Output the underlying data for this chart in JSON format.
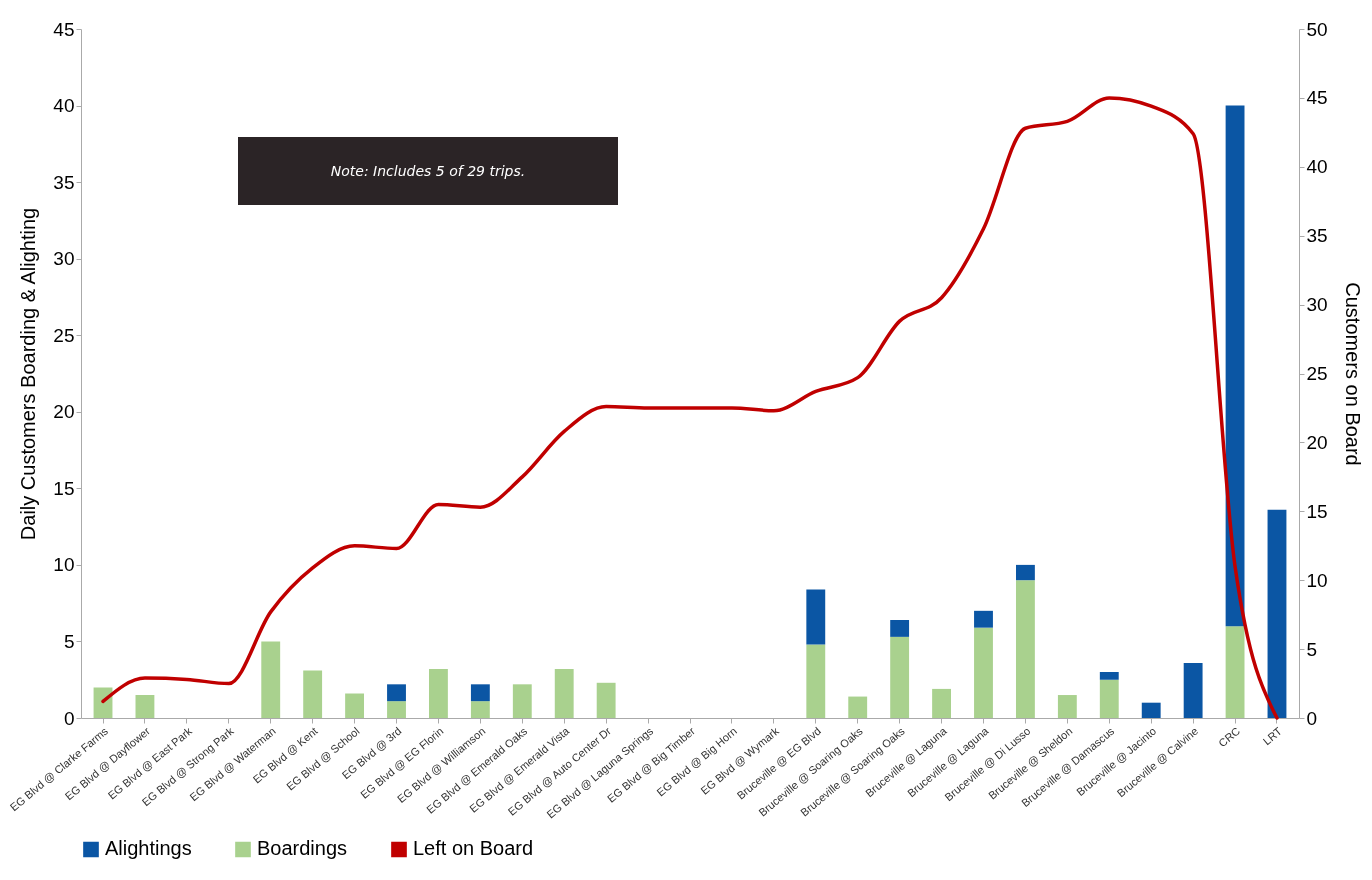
{
  "chart_data": {
    "type": "bar",
    "stacked": true,
    "categories": [
      "EG Blvd @ Clarke Farms",
      "EG Blvd @ Dayflower",
      "EG Blvd @ East Park",
      "EG Blvd @ Strong Park",
      "EG Blvd @ Waterman",
      "EG Blvd @ Kent",
      "EG Blvd @ School",
      "EG Blvd @ 3rd",
      "EG Blvd @ EG Florin",
      "EG Blvd @ Williamson",
      "EG Blvd @ Emerald Oaks",
      "EG Blvd @ Emerald Vista",
      "EG Blvd @ Auto Center Dr",
      "EG Blvd @ Laguna Springs",
      "EG Blvd @ Big Timber",
      "EG Blvd @ Big Horn",
      "EG Blvd @ Wymark",
      "Bruceville @ EG Blvd",
      "Bruceville @ Soaring Oaks",
      "Bruceville @ Soaring Oaks",
      "Bruceville @ Laguna",
      "Bruceville @ Laguna",
      "Bruceville @ Di Lusso",
      "Bruceville @ Sheldon",
      "Bruceville @ Damascus",
      "Bruceville @ Jacinto",
      "Bruceville @ Calvine",
      "CRC",
      "LRT"
    ],
    "series": [
      {
        "name": "Boardings",
        "color": "#a9d18e",
        "values": [
          2,
          1.5,
          0,
          0,
          5,
          3.1,
          1.6,
          1.1,
          3.2,
          1.1,
          2.2,
          3.2,
          2.3,
          0,
          0,
          0,
          0,
          4.8,
          1.4,
          5.3,
          1.9,
          5.9,
          9,
          1.5,
          2.5,
          0,
          0,
          6,
          0
        ]
      },
      {
        "name": "Alightings",
        "color": "#0b56a4",
        "values": [
          0,
          0,
          0,
          0,
          0,
          0,
          0,
          1.1,
          0,
          1.1,
          0,
          0,
          0,
          0,
          0,
          0,
          0,
          3.6,
          0,
          1.1,
          0,
          1.1,
          1,
          0,
          0.5,
          1,
          3.6,
          34,
          13.6
        ]
      },
      {
        "name": "Left on Board",
        "color": "#c00000",
        "type": "line",
        "axis": "y2",
        "values": [
          1.2,
          2.9,
          2.8,
          2.5,
          7.7,
          10.9,
          12.5,
          12.3,
          15.5,
          15.3,
          17.5,
          20.8,
          22.6,
          22.5,
          22.5,
          22.5,
          22.3,
          23.7,
          24.7,
          28.8,
          30.5,
          35.5,
          42.8,
          43.3,
          45,
          44.4,
          42.4,
          11,
          0
        ]
      }
    ],
    "ylabel": "Daily Customers Boarding & Alighting",
    "y2label": "Customers on Board",
    "ylim": [
      0,
      45
    ],
    "yticks": [
      0,
      5,
      10,
      15,
      20,
      25,
      30,
      35,
      40,
      45
    ],
    "y2lim": [
      0,
      50
    ],
    "y2ticks": [
      0,
      5,
      10,
      15,
      20,
      25,
      30,
      35,
      40,
      45,
      50
    ],
    "legend": "bottom",
    "annotations": [
      "Note: Includes 5 of 29 trips."
    ]
  }
}
